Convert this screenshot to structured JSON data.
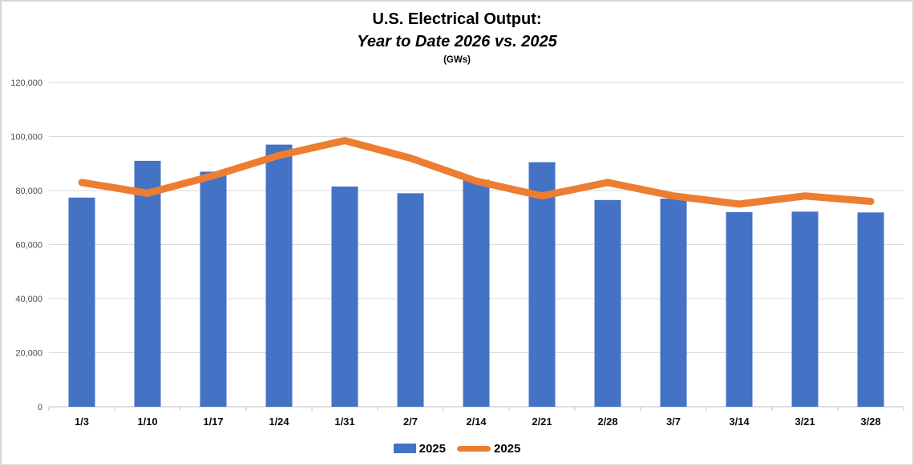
{
  "title": {
    "line1": "U.S. Electrical Output:",
    "line2": "Year to Date 2026 vs. 2025",
    "line3": "(GWs)"
  },
  "chart_data": {
    "type": "combo",
    "title": "U.S. Electrical Output: Year to Date 2026 vs. 2025 (GWs)",
    "categories": [
      "1/3",
      "1/10",
      "1/17",
      "1/24",
      "1/31",
      "2/7",
      "2/14",
      "2/21",
      "2/28",
      "3/7",
      "3/14",
      "3/21",
      "3/28"
    ],
    "series": [
      {
        "name": "2025",
        "type": "bar",
        "color": "#4472C4",
        "values": [
          77400,
          91000,
          87000,
          97000,
          81500,
          79000,
          84000,
          90500,
          76500,
          77000,
          72000,
          72200,
          71900
        ]
      },
      {
        "name": "2025",
        "type": "line",
        "color": "#ED7D31",
        "values": [
          83000,
          79000,
          85500,
          93000,
          98500,
          92000,
          83500,
          78000,
          83000,
          78000,
          75000,
          78000,
          76000
        ]
      }
    ],
    "xlabel": "",
    "ylabel": "",
    "ylim": [
      0,
      120000
    ],
    "ytick_step": 20000,
    "grid": true,
    "legend_position": "bottom"
  },
  "axis": {
    "ytick_labels": [
      "0",
      "20,000",
      "40,000",
      "60,000",
      "80,000",
      "100,000",
      "120,000"
    ]
  },
  "legend": {
    "items": [
      {
        "label": "2025",
        "swatch": "bar",
        "color": "#4472C4"
      },
      {
        "label": "2025",
        "swatch": "line",
        "color": "#ED7D31"
      }
    ]
  },
  "colors": {
    "gridline": "#D9D9D9",
    "axis_line": "#BFBFBF",
    "ytick_label": "#4d4d4d",
    "category_label": "#0d0d0d",
    "background": "#FFFFFF",
    "page_border": "#D6D6D6"
  }
}
